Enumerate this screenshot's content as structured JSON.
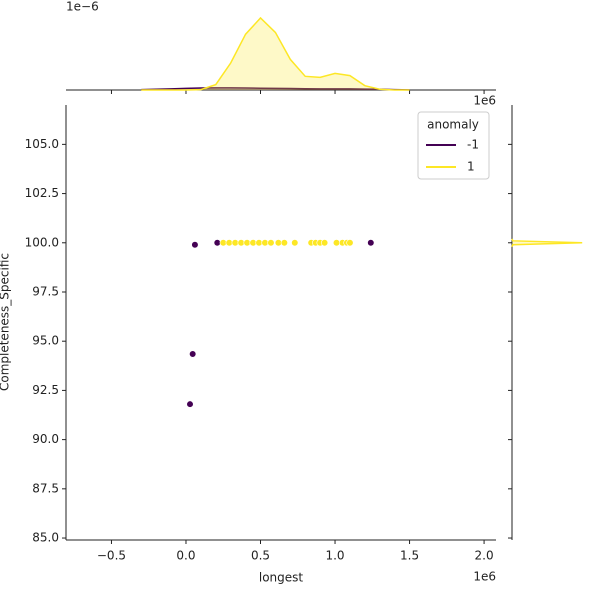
{
  "chart_data": [
    {
      "type": "scatter",
      "xlabel": "longest",
      "ylabel": "Completeness_Specific",
      "x_offset": "1e6",
      "legend_title": "anomaly",
      "legend": "upper right",
      "xlim": [
        -805000,
        2080000
      ],
      "ylim": [
        84.9,
        107.0
      ],
      "xticks": [
        {
          "value": -500000,
          "label": "−0.5"
        },
        {
          "value": 0,
          "label": "0.0"
        },
        {
          "value": 500000,
          "label": "0.5"
        },
        {
          "value": 1000000,
          "label": "1.0"
        },
        {
          "value": 1500000,
          "label": "1.5"
        },
        {
          "value": 2000000,
          "label": "2.0"
        }
      ],
      "yticks": [
        {
          "value": 85,
          "label": "85.0"
        },
        {
          "value": 87.5,
          "label": "87.5"
        },
        {
          "value": 90,
          "label": "90.0"
        },
        {
          "value": 92.5,
          "label": "92.5"
        },
        {
          "value": 95,
          "label": "95.0"
        },
        {
          "value": 97.5,
          "label": "97.5"
        },
        {
          "value": 100,
          "label": "100.0"
        },
        {
          "value": 102.5,
          "label": "102.5"
        },
        {
          "value": 105,
          "label": "105.0"
        }
      ],
      "series": [
        {
          "name": "-1",
          "color": "#440154",
          "x": [
            60000,
            45000,
            27000,
            210000,
            1240000
          ],
          "y": [
            99.9,
            94.35,
            91.8,
            100,
            100
          ]
        },
        {
          "name": "1",
          "color": "#fde725",
          "x": [
            250000,
            290000,
            330000,
            370000,
            410000,
            450000,
            490000,
            530000,
            570000,
            620000,
            660000,
            730000,
            840000,
            870000,
            900000,
            930000,
            1010000,
            1050000,
            1080000,
            1100000
          ],
          "y": [
            100,
            100,
            100,
            100,
            100,
            100,
            100,
            100,
            100,
            100,
            100,
            100,
            100,
            100,
            100,
            100,
            100,
            100,
            100,
            100
          ]
        }
      ]
    },
    {
      "type": "area",
      "y_offset": "1e−6",
      "x_offset": "1e6",
      "xlim": [
        -805000,
        2080000
      ],
      "ylim": [
        0,
        2.5e-06
      ],
      "x": [
        -300000,
        -200000,
        -100000,
        0,
        100000,
        200000,
        300000,
        400000,
        500000,
        600000,
        700000,
        800000,
        900000,
        1000000,
        1100000,
        1200000,
        1300000,
        1400000,
        1500000
      ],
      "series": [
        {
          "name": "-1",
          "color": "#440154",
          "values": [
            1e-08,
            2e-08,
            3e-08,
            4.5e-08,
            5.5e-08,
            6e-08,
            6e-08,
            5.5e-08,
            5e-08,
            4.5e-08,
            4e-08,
            3.5e-08,
            3e-08,
            3e-08,
            3e-08,
            2.5e-08,
            2e-08,
            1e-08,
            5e-09
          ]
        },
        {
          "name": "1",
          "color": "#fde725",
          "values": [
            0,
            0,
            0,
            0,
            1e-08,
            1.5e-07,
            7.5e-07,
            1.55e-06,
            2e-06,
            1.6e-06,
            8.5e-07,
            3.8e-07,
            3.5e-07,
            4.6e-07,
            4e-07,
            1.2e-07,
            2e-08,
            0,
            0
          ]
        }
      ]
    },
    {
      "type": "hline-kde",
      "xlim": [
        0,
        1
      ],
      "ylim": [
        84.9,
        107.0
      ],
      "y": [
        99.8,
        99.9,
        100,
        100.1,
        100.2
      ],
      "series": [
        {
          "name": "1",
          "color": "#fde725",
          "values": [
            0,
            0.01,
            0.9,
            0.01,
            0
          ]
        }
      ]
    }
  ]
}
